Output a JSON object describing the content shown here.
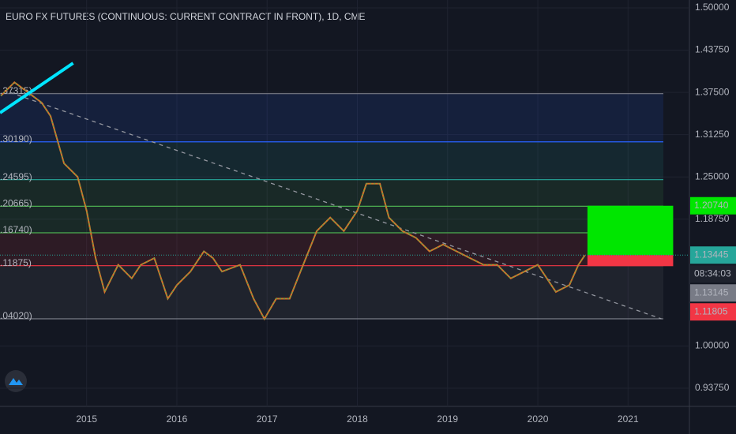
{
  "chart_data": {
    "type": "line",
    "title": "EURO FX FUTURES (CONTINUOUS: CURRENT CONTRACT IN FRONT), 1D, CME",
    "x": [
      2014.05,
      2014.2,
      2014.3,
      2014.5,
      2014.6,
      2014.75,
      2014.9,
      2015.0,
      2015.1,
      2015.2,
      2015.35,
      2015.5,
      2015.6,
      2015.75,
      2015.9,
      2016.0,
      2016.15,
      2016.3,
      2016.4,
      2016.5,
      2016.7,
      2016.85,
      2016.97,
      2017.1,
      2017.25,
      2017.4,
      2017.55,
      2017.7,
      2017.85,
      2018.0,
      2018.1,
      2018.25,
      2018.35,
      2018.5,
      2018.65,
      2018.8,
      2018.95,
      2019.1,
      2019.25,
      2019.4,
      2019.55,
      2019.7,
      2019.85,
      2020.0,
      2020.1,
      2020.2,
      2020.35,
      2020.45,
      2020.52
    ],
    "series": [
      {
        "color": "#d4732a",
        "values": [
          1.37,
          1.39,
          1.38,
          1.36,
          1.34,
          1.27,
          1.25,
          1.2,
          1.13,
          1.08,
          1.12,
          1.1,
          1.12,
          1.13,
          1.07,
          1.09,
          1.11,
          1.14,
          1.13,
          1.11,
          1.12,
          1.07,
          1.04,
          1.07,
          1.07,
          1.12,
          1.17,
          1.19,
          1.17,
          1.2,
          1.24,
          1.24,
          1.19,
          1.17,
          1.16,
          1.14,
          1.15,
          1.14,
          1.13,
          1.12,
          1.12,
          1.1,
          1.11,
          1.12,
          1.1,
          1.08,
          1.09,
          1.12,
          1.134
        ]
      }
    ],
    "xlim": [
      2014.04,
      2021.68
    ],
    "ylim": [
      0.9107,
      1.5
    ],
    "xticks": [
      2015,
      2016,
      2017,
      2018,
      2019,
      2020,
      2021
    ],
    "yticks": [
      {
        "value": 1.5,
        "label": "1.50000"
      },
      {
        "value": 1.4375,
        "label": "1.43750"
      },
      {
        "value": 1.375,
        "label": "1.37500"
      },
      {
        "value": 1.3125,
        "label": "1.31250"
      },
      {
        "value": 1.25,
        "label": "1.25000"
      },
      {
        "value": 1.1875,
        "label": "1.18750"
      },
      {
        "value": 1.0,
        "label": "1.00000"
      },
      {
        "value": 0.9375,
        "label": "0.93750"
      }
    ],
    "levels": [
      {
        "value": 1.37315,
        "label": ".37315)",
        "color": "#787b86"
      },
      {
        "value": 1.3019,
        "label": ".30190)",
        "color": "#2962ff"
      },
      {
        "value": 1.24595,
        "label": ".24595)",
        "color": "#26a69a"
      },
      {
        "value": 1.20665,
        "label": ".20665)",
        "color": "#4caf50"
      },
      {
        "value": 1.1674,
        "label": ".16740)",
        "color": "#4caf50"
      },
      {
        "value": 1.11875,
        "label": ".11875)",
        "color": "#f23645"
      },
      {
        "value": 1.0402,
        "label": ".04020)",
        "color": "#787b86"
      }
    ],
    "position": {
      "start": 2020.55,
      "end": 2021.5,
      "target": 1.2074,
      "entry": 1.13445,
      "stop": 1.11805
    },
    "trendline": {
      "x": [
        2014.15,
        2021.37
      ],
      "values": [
        1.375,
        1.0402
      ]
    },
    "drawn_line": {
      "x": [
        2014.04,
        2014.85
      ],
      "values": [
        1.3448,
        1.4183
      ]
    },
    "badges": [
      {
        "value": 1.2074,
        "label": "1.20740",
        "color": "#00e600"
      },
      {
        "value": 1.13445,
        "label": "1.13445",
        "color": "#26a69a"
      },
      {
        "label": "08:34:03",
        "color": "#1e222d"
      },
      {
        "value": 1.13145,
        "label": "1.13145",
        "color": "#787b86"
      },
      {
        "value": 1.11805,
        "label": "1.11805",
        "color": "#f23645"
      }
    ]
  }
}
